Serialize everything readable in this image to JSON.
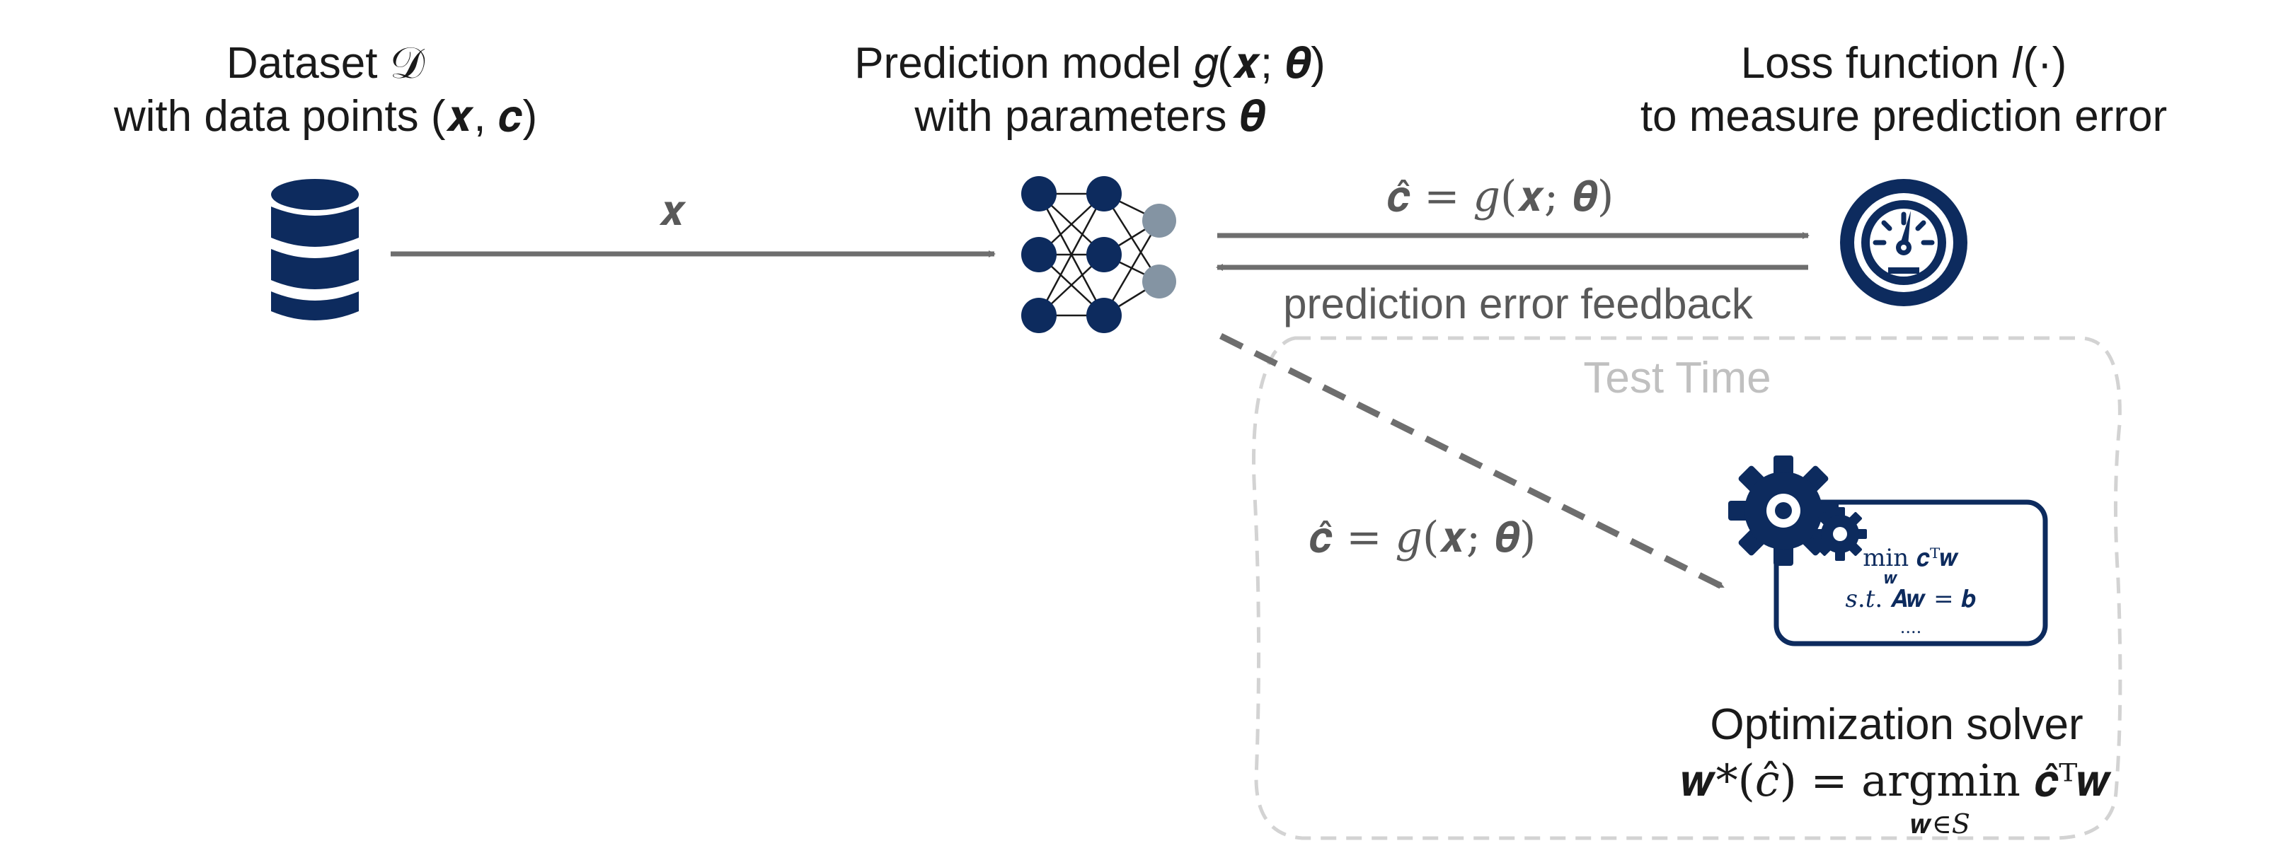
{
  "dataset": {
    "title_line1": "Dataset 𝒟",
    "title_line2": "with data points (𝒙, 𝒄)"
  },
  "model": {
    "title_line1": "Prediction model 𝑔(𝒙; 𝜽)",
    "title_line2": "with parameters 𝜽"
  },
  "loss": {
    "title_line1": "Loss function 𝑙(·)",
    "title_line2": "to measure prediction error"
  },
  "arrows": {
    "input_label": "𝒙",
    "prediction_label": "𝒄̂ = 𝑔(𝒙; 𝜽)",
    "feedback_label": "prediction error feedback",
    "test_prediction_label": "𝒄̂ = 𝑔(𝒙; 𝜽)"
  },
  "test_region": {
    "label": "Test Time"
  },
  "solver": {
    "problem_line1": "min 𝒄ᵀ𝒘",
    "problem_sub": "𝒘",
    "problem_line2": "𝑠.𝑡. 𝑨𝒘 = 𝒃",
    "problem_line3": "....",
    "title": "Optimization solver",
    "formula": "𝒘*(𝑐̂) = argmin 𝒄̂ᵀ𝒘",
    "formula_sub": "𝒘∈𝑆"
  },
  "colors": {
    "navy": "#0d2b5e",
    "gray_node": "#8494a3",
    "arrow": "#6e6e6e",
    "dashed_region": "#d3d3d3"
  },
  "icons": [
    "database-icon",
    "neural-network-icon",
    "speedometer-icon",
    "gears-icon"
  ]
}
